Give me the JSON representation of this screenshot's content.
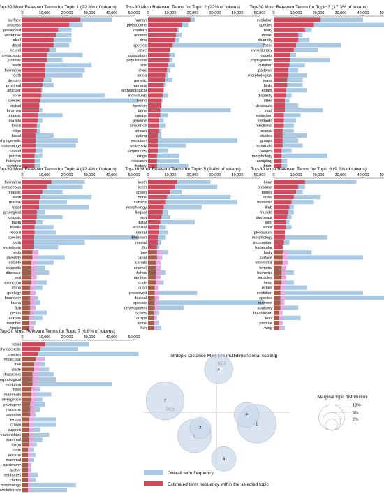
{
  "colors": {
    "overall": "#a9c9e4",
    "topic": "#d1495b",
    "brown": "#a65d48",
    "pink": "#e8a7e0",
    "circle_fill": "#c9d9ea",
    "circle_stroke": "#a9bdd6",
    "axis": "#999999"
  },
  "chart_data": [
    {
      "type": "bar",
      "orientation": "horizontal",
      "title": "Top-30 Most Relevant Terms for Topic 1 (22.8% of tokens)",
      "ticks": [
        "0",
        "10,000",
        "20,000",
        "30,000",
        "40,000",
        "50,000"
      ],
      "xlim": [
        0,
        50000
      ],
      "terms": [
        "surface",
        "process",
        "preserved",
        "vertebrae",
        "skull",
        "distal",
        "neural",
        "cretaceous",
        "jurassic",
        "teeth",
        "formation",
        "tooth",
        "dentary",
        "proximal",
        "articular",
        "bone",
        "species",
        "ervical",
        "foramen",
        "triassic",
        "maxilla",
        "fossa",
        "ridge",
        "basal",
        "phylogenetic",
        "morphology",
        "caudal",
        "portion",
        "holotype",
        "vertebra"
      ],
      "overall": [
        40000,
        27000,
        22000,
        22000,
        22000,
        21000,
        15000,
        27000,
        18000,
        31000,
        28000,
        27000,
        13000,
        14000,
        9000,
        37000,
        52000,
        8000,
        9000,
        18000,
        9000,
        8000,
        8000,
        14000,
        25000,
        24000,
        9000,
        9000,
        8000,
        8000
      ],
      "topic": [
        26000,
        21000,
        16000,
        15000,
        14000,
        14000,
        12000,
        11000,
        11000,
        10000,
        10000,
        10000,
        9500,
        9000,
        8500,
        8500,
        8000,
        7500,
        7500,
        7000,
        7000,
        6500,
        6500,
        6000,
        6000,
        6000,
        6000,
        5500,
        5500,
        5500
      ],
      "brown_from": 99
    },
    {
      "type": "bar",
      "orientation": "horizontal",
      "title": "Top-30 Most Relevant Terms for Topic 2 (22% of tokens)",
      "ticks": [
        "0",
        "10,000",
        "20,000",
        "30,000",
        "40,000",
        "50,000"
      ],
      "xlim": [
        0,
        50000
      ],
      "terms": [
        "human",
        "pleistocene",
        "modern",
        "ancient",
        "dna",
        "species",
        "cave",
        "population",
        "populations",
        "site",
        "sites",
        "africa",
        "genetic",
        "humans",
        "archaeological",
        "individuals",
        "homo",
        "hominin",
        "bone",
        "europe",
        "genome",
        "sequence",
        "african",
        "dating",
        "evolution",
        "university",
        "sequences",
        "range",
        "research",
        "history"
      ],
      "overall": [
        21000,
        18000,
        14000,
        15000,
        14000,
        52000,
        9000,
        12000,
        11000,
        12000,
        10000,
        9000,
        11000,
        8000,
        7000,
        9000,
        6500,
        6000,
        37000,
        9000,
        7000,
        8000,
        6000,
        6000,
        40000,
        17000,
        9000,
        14000,
        14000,
        18000
      ],
      "topic": [
        19000,
        15000,
        13000,
        12500,
        12000,
        11000,
        10000,
        9500,
        9500,
        9000,
        8500,
        8000,
        7500,
        7000,
        7000,
        6500,
        6000,
        6000,
        5500,
        5500,
        5000,
        5000,
        5000,
        4500,
        4500,
        4500,
        4500,
        4000,
        4000,
        4000
      ],
      "brown_from": 99
    },
    {
      "type": "bar",
      "orientation": "horizontal",
      "title": "Top-30 Most Relevant Terms for Topic 3 (17.3% of tokens)",
      "ticks": [
        "0",
        "10,000",
        "20,000",
        "30,000",
        "40,000",
        "50,000"
      ],
      "xlim": [
        0,
        50000
      ],
      "terms": [
        "evolution",
        "species",
        "body",
        "model",
        "diversity",
        "fossil",
        "evolutionary",
        "models",
        "phylogenetic",
        "variation",
        "patterns",
        "morphological",
        "mass",
        "birds",
        "extant",
        "disparity",
        "rates",
        "dinosaurs",
        "skull",
        "extinction",
        "methods",
        "functional",
        "cranial",
        "studies",
        "groups",
        "mammals",
        "changes",
        "morphology",
        "sampling",
        "brain"
      ],
      "overall": [
        40000,
        52000,
        17000,
        13000,
        16000,
        30000,
        20000,
        10000,
        25000,
        14000,
        11000,
        15000,
        13000,
        13000,
        15000,
        8000,
        7000,
        11000,
        22000,
        12000,
        10000,
        9000,
        9000,
        15000,
        11000,
        13000,
        8000,
        24000,
        6000,
        6000
      ],
      "topic": [
        21000,
        18000,
        14000,
        11000,
        11000,
        10000,
        9000,
        7500,
        7500,
        7000,
        6500,
        6500,
        6000,
        6000,
        5500,
        5500,
        5000,
        5000,
        5000,
        4500,
        4500,
        4500,
        4000,
        4000,
        4000,
        4000,
        3500,
        3500,
        3500,
        3500
      ],
      "brown_from": 99
    },
    {
      "type": "bar",
      "orientation": "horizontal",
      "title": "Top-30 Most Relevant Terms for Topic 4 (12.4% of tokens)",
      "ticks": [
        "0",
        "10,000",
        "20,000",
        "30,000",
        "40,000",
        "50,000"
      ],
      "xlim": [
        0,
        50000
      ],
      "terms": [
        "formation",
        "cretaceous",
        "triassic",
        "teeth",
        "marine",
        "fossil",
        "geological",
        "jurassic",
        "basin",
        "fossils",
        "record",
        "species",
        "tooth",
        "vertebrate",
        "beds",
        "diversity",
        "society",
        "deposits",
        "dinosaur",
        "bed",
        "extinction",
        "china",
        "geology",
        "boundary",
        "fauna",
        "fish",
        "genus",
        "europe",
        "member",
        "tracks"
      ],
      "overall": [
        28000,
        27000,
        18000,
        31000,
        20000,
        30000,
        10000,
        18000,
        9000,
        14000,
        15000,
        52000,
        28000,
        16000,
        7000,
        19000,
        14000,
        10000,
        12000,
        6000,
        11000,
        9000,
        6000,
        7000,
        8000,
        6000,
        11000,
        9000,
        6000,
        5000
      ],
      "topic": [
        13000,
        11000,
        9000,
        8000,
        7500,
        7500,
        6500,
        6500,
        6000,
        5500,
        5500,
        5000,
        5000,
        5000,
        4500,
        4500,
        4000,
        4000,
        4000,
        4000,
        4000,
        3500,
        3500,
        3500,
        3500,
        3500,
        3500,
        3000,
        3000,
        3000
      ],
      "brown_from": 14
    },
    {
      "type": "bar",
      "orientation": "horizontal",
      "title": "Top-30 Most Relevant Terms for Topic 5 (9.4% of tokens)",
      "ticks": [
        "0",
        "10,000",
        "20,000",
        "30,000",
        "40,000",
        "50,000"
      ],
      "xlim": [
        0,
        50000
      ],
      "terms": [
        "tooth",
        "teeth",
        "crown",
        "bone",
        "surface",
        "morphology",
        "lingual",
        "root",
        "distal",
        "occlusal",
        "dental",
        "devonian",
        "mesial",
        "fin",
        "jaw",
        "canal",
        "canals",
        "enamel",
        "fishes",
        "dentine",
        "scale",
        "cusp",
        "preserved",
        "buccal",
        "species",
        "development",
        "scales",
        "cusps",
        "spine",
        "fish"
      ],
      "overall": [
        28000,
        31000,
        15000,
        37000,
        40000,
        24000,
        9000,
        10000,
        21000,
        8000,
        9000,
        8000,
        6000,
        5000,
        9000,
        5000,
        4500,
        4500,
        8000,
        4000,
        7000,
        4000,
        22000,
        5000,
        52000,
        16000,
        5000,
        3500,
        5000,
        6000
      ],
      "topic": [
        13000,
        12000,
        10000,
        8500,
        8000,
        7000,
        6500,
        6000,
        5500,
        5000,
        5000,
        4500,
        4500,
        4000,
        4000,
        4000,
        3500,
        3500,
        3500,
        3500,
        3500,
        3000,
        3000,
        3000,
        3000,
        3000,
        2500,
        2500,
        2500,
        2500
      ],
      "brown_from": 14
    },
    {
      "type": "bar",
      "orientation": "horizontal",
      "title": "Top-30 Most Relevant Terms for Topic 6 (9.2% of tokens)",
      "ticks": [
        "0",
        "10,000",
        "20,000",
        "30,000",
        "40,000",
        "50,000"
      ],
      "xlim": [
        0,
        50000
      ],
      "terms": [
        "bone",
        "proximal",
        "bones",
        "distal",
        "humerus",
        "limb",
        "muscle",
        "pterosaur",
        "joint",
        "femur",
        "pterosaurs",
        "morphology",
        "locomotion",
        "trabecular",
        "body",
        "surface",
        "locomotor",
        "femoral",
        "humerus",
        "muscles",
        "head",
        "extant",
        "evolution",
        "species",
        "moment",
        "anatomy",
        "hutchinson",
        "less",
        "posture",
        "wing"
      ],
      "overall": [
        37000,
        14000,
        13000,
        21000,
        18000,
        9000,
        9000,
        8000,
        7000,
        8000,
        5000,
        24000,
        7000,
        4000,
        17000,
        40000,
        5000,
        5000,
        9000,
        5000,
        9000,
        15000,
        40000,
        52000,
        4000,
        11000,
        3500,
        12000,
        4000,
        5000
      ],
      "topic": [
        14000,
        11000,
        10000,
        9000,
        8000,
        7000,
        6500,
        6000,
        5500,
        5500,
        5000,
        5000,
        4500,
        4000,
        4000,
        4000,
        4000,
        3500,
        3500,
        3500,
        3500,
        3000,
        3000,
        3000,
        3000,
        3000,
        2500,
        2500,
        2500,
        2500
      ],
      "brown_from": 14
    },
    {
      "type": "bar",
      "orientation": "horizontal",
      "title": "Top-30 Most Relevant Terms for Topic 7 (6.8% of tokens)",
      "ticks": [
        "0",
        "10,000",
        "20,000",
        "30,000",
        "40,000",
        "50,000"
      ],
      "xlim": [
        0,
        50000
      ],
      "terms": [
        "fossil",
        "phylogenetic",
        "species",
        "molecular",
        "tree",
        "clade",
        "characters",
        "morphological",
        "evolution",
        "trees",
        "mammals",
        "divergence",
        "phylogeny",
        "miocene",
        "bayesian",
        "extant",
        "crown",
        "support",
        "relationships",
        "mammal",
        "taxon",
        "node",
        "eocene",
        "mammal",
        "parsimony",
        "archer",
        "estimates",
        "clades",
        "morphology",
        "evolutionary"
      ],
      "overall": [
        30000,
        25000,
        52000,
        10000,
        10000,
        12000,
        14000,
        15000,
        40000,
        8000,
        13000,
        9000,
        10000,
        8000,
        6000,
        15000,
        15000,
        8000,
        12000,
        9000,
        6500,
        5000,
        6000,
        5000,
        4000,
        4000,
        7000,
        6000,
        24000,
        20000
      ],
      "topic": [
        10000,
        8000,
        7000,
        6000,
        5000,
        5000,
        4500,
        4500,
        4500,
        4000,
        4000,
        4000,
        3500,
        3500,
        3500,
        3000,
        3000,
        3000,
        3000,
        3000,
        3000,
        2500,
        2500,
        2500,
        2500,
        2500,
        2500,
        2500,
        2500,
        2500
      ],
      "brown_from": 3
    },
    {
      "type": "scatter",
      "title": "Intritopic Distance Map (via multidimensional scaling)",
      "xlabel": "PC1",
      "ylabel": "PC2",
      "xlim": [
        -1,
        1
      ],
      "ylim": [
        -1,
        1
      ],
      "points": [
        {
          "label": "1",
          "x": 0.55,
          "y": -0.22,
          "share": 22.8
        },
        {
          "label": "2",
          "x": -0.7,
          "y": 0.22,
          "share": 22.0
        },
        {
          "label": "3",
          "x": -0.3,
          "y": -0.45,
          "share": 17.3
        },
        {
          "label": "4",
          "x": 0.03,
          "y": 0.82,
          "share": 12.4
        },
        {
          "label": "5",
          "x": 0.41,
          "y": -0.05,
          "share": 9.4
        },
        {
          "label": "6",
          "x": 0.1,
          "y": -0.89,
          "share": 9.2
        },
        {
          "label": "7",
          "x": -0.22,
          "y": -0.3,
          "share": 6.8
        }
      ]
    }
  ],
  "size_legend": {
    "title": "Marginal topic distribution",
    "items": [
      {
        "label": "2%",
        "share": 2
      },
      {
        "label": "5%",
        "share": 5
      },
      {
        "label": "10%",
        "share": 10
      }
    ]
  },
  "legend": {
    "overall_label": "Overall term frequency",
    "topic_label": "Estimated term frequency within the selected topic"
  }
}
